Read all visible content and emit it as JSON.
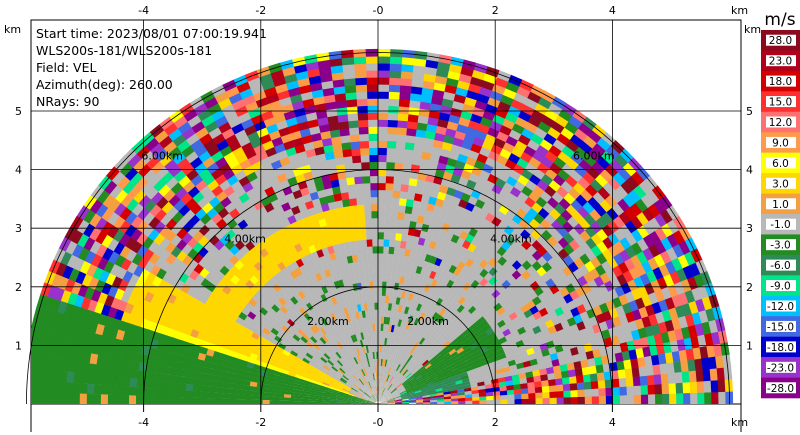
{
  "chart_data": {
    "type": "heatmap",
    "plot_kind": "PPI radial velocity (upper half)",
    "info_lines": {
      "start_time": "Start time: 2023/08/01 07:00:19.941",
      "instrument": "WLS200s-181/WLS200s-181",
      "field": "Field: VEL",
      "azimuth": "Azimuth(deg): 260.00",
      "nrays": "NRays: 90"
    },
    "x_axis": {
      "unit": "km",
      "range": [
        -6,
        6
      ],
      "ticks": [
        -4,
        -2,
        0,
        2,
        4
      ],
      "tick_labels": [
        "-4",
        "-2",
        "-0",
        "2",
        "4"
      ]
    },
    "y_axis": {
      "unit": "km",
      "range": [
        0,
        6
      ],
      "ticks": [
        1,
        2,
        3,
        4,
        5
      ],
      "tick_labels": [
        "1",
        "2",
        "3",
        "4",
        "5"
      ]
    },
    "range_rings_km": [
      2,
      4,
      6
    ],
    "range_ring_labels": [
      "2.00km",
      "4.00km",
      "6.00km"
    ],
    "max_range_km": 6,
    "grid": true,
    "colorbar": {
      "title": "m/s",
      "position": "right",
      "labels": [
        "28.0",
        "23.0",
        "18.0",
        "15.0",
        "12.0",
        "9.0",
        "6.0",
        "3.0",
        "1.0",
        "-1.0",
        "-3.0",
        "-6.0",
        "-9.0",
        "-12.0",
        "-15.0",
        "-18.0",
        "-23.0",
        "-28.0"
      ],
      "colors": [
        "#8b0a1e",
        "#b0001a",
        "#d40000",
        "#ff3030",
        "#ff7070",
        "#ff9a4a",
        "#ffff00",
        "#ffd700",
        "#f4a040",
        "#b8b8b8",
        "#228b22",
        "#2e8b57",
        "#00e58a",
        "#00bfff",
        "#4169e1",
        "#0000cd",
        "#9932cc",
        "#8b008b"
      ]
    },
    "field_regions": [
      {
        "name": "near-field band south-west",
        "velocity": -3.0,
        "az_deg": [
          163,
          180
        ],
        "range_km": [
          0.0,
          6.0
        ]
      },
      {
        "name": "yellow plume west",
        "velocity": 6.0,
        "az_deg": [
          160,
          172
        ],
        "range_km": [
          0.4,
          4.2
        ]
      },
      {
        "name": "orange plume west",
        "velocity": 3.0,
        "az_deg": [
          150,
          165
        ],
        "range_km": [
          0.5,
          4.6
        ]
      },
      {
        "name": "green patch east",
        "velocity": -3.0,
        "az_deg": [
          20,
          40
        ],
        "range_km": [
          0.5,
          2.3
        ]
      },
      {
        "name": "teal patch east",
        "velocity": -6.0,
        "az_deg": [
          10,
          25
        ],
        "range_km": [
          0.3,
          1.6
        ]
      },
      {
        "name": "orange arc north",
        "velocity": 3.0,
        "az_deg": [
          95,
          150
        ],
        "range_km": [
          2.8,
          3.4
        ]
      },
      {
        "name": "noise ring outer",
        "velocity": null,
        "az_deg": [
          0,
          180
        ],
        "range_km": [
          4.4,
          6.0
        ]
      }
    ]
  }
}
